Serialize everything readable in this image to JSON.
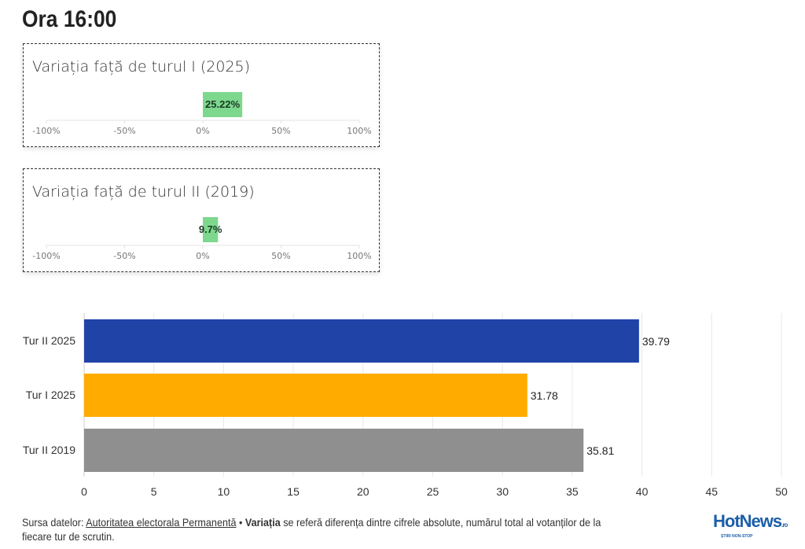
{
  "title": "Ora 16:00",
  "gauges": [
    {
      "title": "Variația față de turul I (2025)",
      "value": 25.22,
      "label": "25.22%",
      "ticks": [
        "-100%",
        "-50%",
        "0%",
        "50%",
        "100%"
      ],
      "color": "#7dd88e"
    },
    {
      "title": "Variația față de turul II (2019)",
      "value": 9.7,
      "label": "9.7%",
      "ticks": [
        "-100%",
        "-50%",
        "0%",
        "50%",
        "100%"
      ],
      "color": "#7dd88e"
    }
  ],
  "chart_data": {
    "type": "bar",
    "orientation": "horizontal",
    "categories": [
      "Tur II 2025",
      "Tur I 2025",
      "Tur II 2019"
    ],
    "values": [
      39.79,
      31.78,
      35.81
    ],
    "labels": [
      "39.79",
      "31.78",
      "35.81"
    ],
    "colors": [
      "#2043a8",
      "#ffab00",
      "#8f8f8f"
    ],
    "xlim": [
      0,
      50
    ],
    "xticks": [
      "0",
      "5",
      "10",
      "15",
      "20",
      "25",
      "30",
      "35",
      "40",
      "45",
      "50"
    ],
    "grid": true
  },
  "footer": {
    "prefix": "Sursa datelor: ",
    "source_link": "Autoritatea electorala Permanentă",
    "sep": " • ",
    "bold": "Variația",
    "text": " se referă diferența dintre cifrele absolute, numărul total al votanților de la fiecare tur de scrutin."
  },
  "logo": {
    "text": "HotNews",
    "suffix": ".ro",
    "tagline": "ȘTIRI NON-STOP"
  }
}
